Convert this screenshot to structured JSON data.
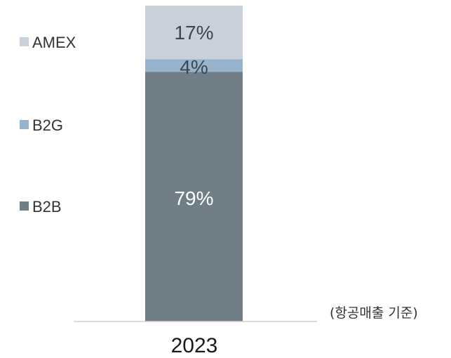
{
  "chart_data": {
    "type": "bar",
    "stacked": true,
    "categories": [
      "2023"
    ],
    "series": [
      {
        "name": "B2B",
        "values": [
          79
        ],
        "label": "79%",
        "color": "#707e87"
      },
      {
        "name": "B2G",
        "values": [
          4
        ],
        "label": "4%",
        "color": "#98b4cc"
      },
      {
        "name": "AMEX",
        "values": [
          17
        ],
        "label": "17%",
        "color": "#c8d1da"
      }
    ],
    "ylim": [
      0,
      100
    ],
    "legend_position": "left",
    "grid": false,
    "note": "(항공매출 기준)"
  }
}
